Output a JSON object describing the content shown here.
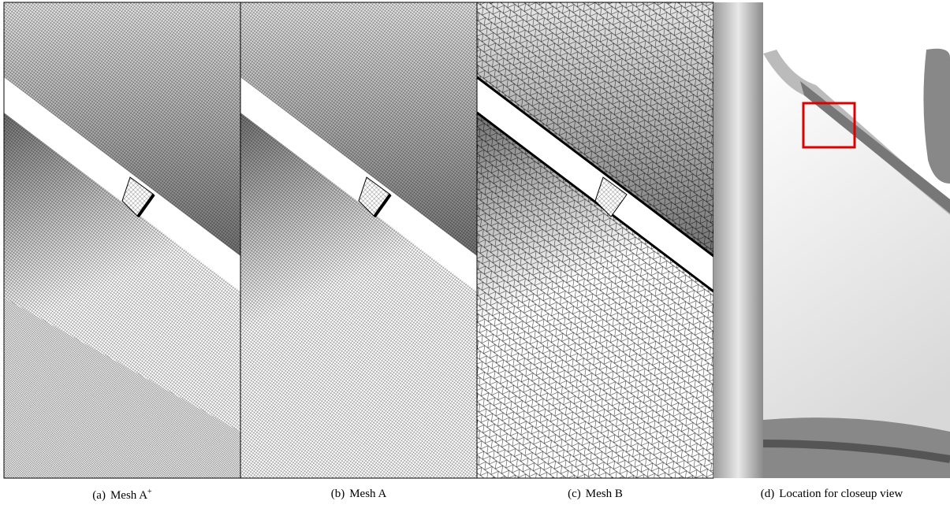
{
  "figure": {
    "panels": [
      {
        "tag": "(a)",
        "caption": "Mesh A",
        "sup": "+"
      },
      {
        "tag": "(b)",
        "caption": "Mesh A"
      },
      {
        "tag": "(c)",
        "caption": "Mesh B"
      },
      {
        "tag": "(d)",
        "caption": "Location for closeup view"
      }
    ]
  }
}
